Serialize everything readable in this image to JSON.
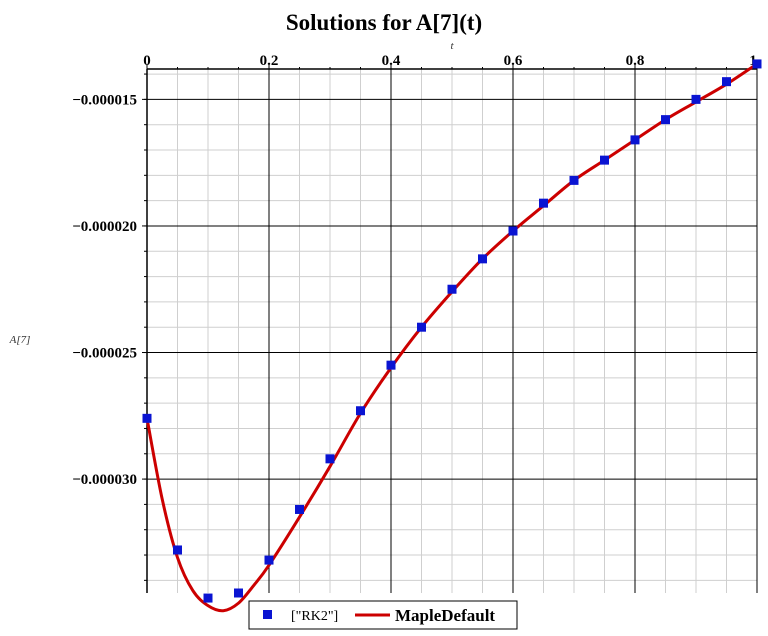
{
  "chart_data": {
    "type": "line",
    "title": "Solutions for A[7](t)",
    "xlabel": "t",
    "ylabel": "A[7]",
    "xlim": [
      0,
      1
    ],
    "ylim": [
      -3.45e-05,
      -1.38e-05
    ],
    "x_ticks": [
      0,
      0.2,
      0.4,
      0.6,
      0.8,
      1
    ],
    "x_tick_labels": [
      "0",
      "0.2",
      "0.4",
      "0.6",
      "0.8",
      "1"
    ],
    "y_ticks": [
      -1.5e-05,
      -2e-05,
      -2.5e-05,
      -3e-05
    ],
    "y_tick_labels": [
      "−0.000015",
      "−0.000020",
      "−0.000025",
      "−0.000030"
    ],
    "grid": true,
    "x_axis_position": "top",
    "legend_position": "bottom-center",
    "series": [
      {
        "name": "[\"RK2\"]",
        "type": "scatter",
        "marker": "square",
        "color": "#0a14d2",
        "x": [
          0,
          0.05,
          0.1,
          0.15,
          0.2,
          0.25,
          0.3,
          0.35,
          0.4,
          0.45,
          0.5,
          0.55,
          0.6,
          0.65,
          0.7,
          0.75,
          0.8,
          0.85,
          0.9,
          0.95,
          1.0
        ],
        "y": [
          -2.76e-05,
          -3.28e-05,
          -3.47e-05,
          -3.45e-05,
          -3.32e-05,
          -3.12e-05,
          -2.92e-05,
          -2.73e-05,
          -2.55e-05,
          -2.4e-05,
          -2.25e-05,
          -2.13e-05,
          -2.02e-05,
          -1.91e-05,
          -1.82e-05,
          -1.74e-05,
          -1.66e-05,
          -1.58e-05,
          -1.5e-05,
          -1.43e-05,
          -1.36e-05
        ]
      },
      {
        "name": "MapleDefault",
        "type": "line",
        "color": "#cc0000",
        "x": [
          0,
          0.025,
          0.05,
          0.075,
          0.1,
          0.125,
          0.15,
          0.175,
          0.2,
          0.25,
          0.3,
          0.35,
          0.4,
          0.45,
          0.5,
          0.55,
          0.6,
          0.65,
          0.7,
          0.75,
          0.8,
          0.85,
          0.9,
          0.95,
          1.0
        ],
        "y": [
          -2.76e-05,
          -3.08e-05,
          -3.31e-05,
          -3.44e-05,
          -3.5e-05,
          -3.52e-05,
          -3.49e-05,
          -3.42e-05,
          -3.34e-05,
          -3.15e-05,
          -2.95e-05,
          -2.74e-05,
          -2.56e-05,
          -2.4e-05,
          -2.26e-05,
          -2.13e-05,
          -2.02e-05,
          -1.92e-05,
          -1.82e-05,
          -1.74e-05,
          -1.66e-05,
          -1.58e-05,
          -1.51e-05,
          -1.44e-05,
          -1.36e-05
        ]
      }
    ]
  }
}
